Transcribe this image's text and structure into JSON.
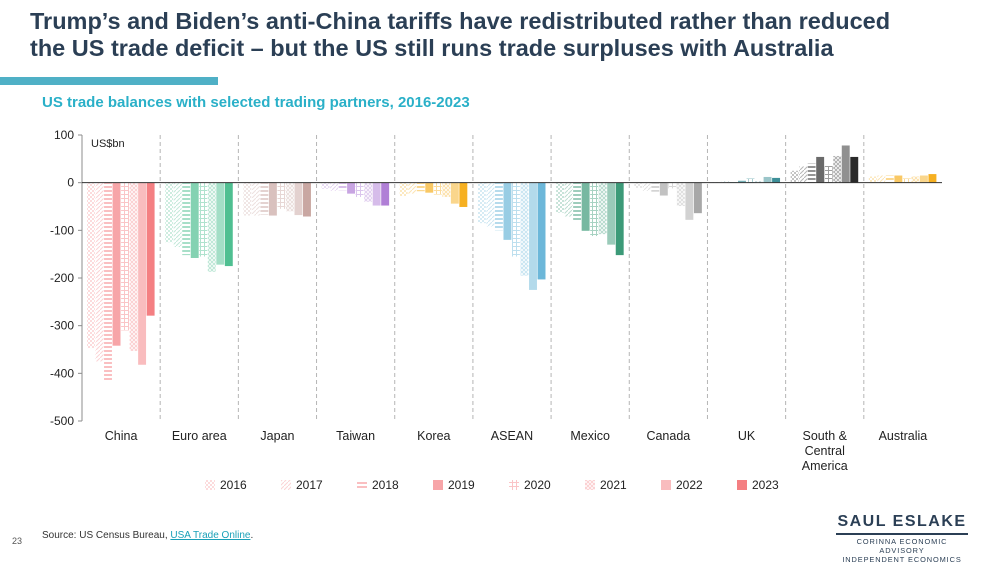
{
  "slide": {
    "title_line1": "Trump’s and Biden’s anti-China tariffs have redistributed rather than reduced",
    "title_line2": "the US trade deficit – but the US still runs trade surpluses with Australia",
    "page_number": "23",
    "accent_color": "#4fb0c6"
  },
  "source": {
    "prefix": "Source: US Census Bureau, ",
    "link_text": "USA Trade Online",
    "suffix": "."
  },
  "logo": {
    "name": "SAUL ESLAKE",
    "line1": "CORINNA ECONOMIC ADVISORY",
    "line2": "INDEPENDENT ECONOMICS"
  },
  "chart_data": {
    "type": "bar",
    "title": "US trade balances with selected trading partners, 2016-2023",
    "ylabel": "US$bn",
    "ylim": [
      -500,
      100
    ],
    "yticks": [
      100,
      0,
      -100,
      -200,
      -300,
      -400,
      -500
    ],
    "ytick_labels": [
      "100",
      "0",
      "-100",
      "-200",
      "-300",
      "-400",
      "-500"
    ],
    "grid": false,
    "legend_position": "bottom",
    "years": [
      "2016",
      "2017",
      "2018",
      "2019",
      "2020",
      "2021",
      "2022",
      "2023"
    ],
    "categories": [
      {
        "name": "China",
        "label_lines": [
          "China"
        ],
        "color": "#f47f82",
        "values": [
          -347,
          -375,
          -418,
          -342,
          -310,
          -353,
          -382,
          -279
        ]
      },
      {
        "name": "Euro area",
        "label_lines": [
          "Euro area"
        ],
        "color": "#4fbf91",
        "values": [
          -125,
          -135,
          -152,
          -158,
          -155,
          -187,
          -172,
          -175
        ]
      },
      {
        "name": "Japan",
        "label_lines": [
          "Japan"
        ],
        "color": "#c9a7a2",
        "values": [
          -69,
          -69,
          -67,
          -69,
          -55,
          -60,
          -68,
          -71
        ]
      },
      {
        "name": "Taiwan",
        "label_lines": [
          "Taiwan"
        ],
        "color": "#b07fd6",
        "values": [
          -13,
          -17,
          -16,
          -23,
          -30,
          -40,
          -48,
          -48
        ]
      },
      {
        "name": "Korea",
        "label_lines": [
          "Korea"
        ],
        "color": "#f6b021",
        "values": [
          -28,
          -23,
          -18,
          -21,
          -25,
          -30,
          -44,
          -51
        ]
      },
      {
        "name": "ASEAN",
        "label_lines": [
          "ASEAN"
        ],
        "color": "#6cb7d9",
        "values": [
          -85,
          -92,
          -100,
          -120,
          -155,
          -195,
          -225,
          -203
        ]
      },
      {
        "name": "Mexico",
        "label_lines": [
          "Mexico"
        ],
        "color": "#3c9a78",
        "values": [
          -63,
          -71,
          -81,
          -101,
          -112,
          -108,
          -130,
          -152
        ]
      },
      {
        "name": "Canada",
        "label_lines": [
          "Canada"
        ],
        "color": "#a8a8a8",
        "values": [
          -11,
          -17,
          -19,
          -27,
          -12,
          -49,
          -78,
          -64
        ]
      },
      {
        "name": "UK",
        "label_lines": [
          "UK"
        ],
        "color": "#3d8f98",
        "values": [
          1,
          3,
          5,
          4,
          9,
          3,
          12,
          10
        ]
      },
      {
        "name": "South & Central America",
        "label_lines": [
          "South &",
          "Central",
          "America"
        ],
        "color": "#2a2a2a",
        "values": [
          25,
          34,
          40,
          54,
          35,
          56,
          78,
          54
        ]
      },
      {
        "name": "Australia",
        "label_lines": [
          "Australia"
        ],
        "color": "#f6b021",
        "values": [
          13,
          15,
          15,
          15,
          9,
          13,
          15,
          18
        ]
      }
    ]
  }
}
